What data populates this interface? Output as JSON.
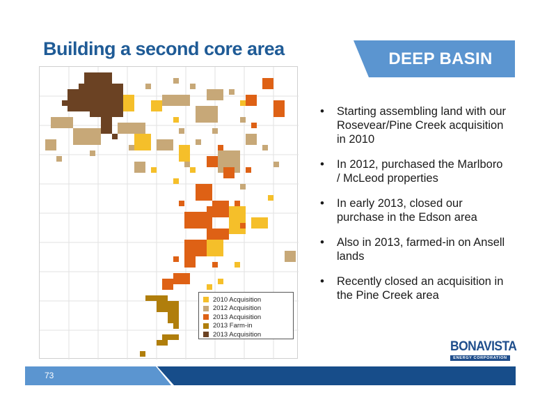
{
  "slide": {
    "title": "Building a second core area",
    "banner": "DEEP BASIN",
    "page_number": "73"
  },
  "colors": {
    "title": "#1f5b96",
    "banner": "#5b95d0",
    "footer_dark": "#174d8a",
    "acq_2010": "#f5bf2a",
    "acq_2012": "#c7a878",
    "acq_2013": "#de6115",
    "farm_in_2013": "#b07e0c",
    "acq_2013_dark": "#6b4223"
  },
  "legend": [
    {
      "label": "2010 Acquisition",
      "color": "#f5bf2a"
    },
    {
      "label": "2012 Acquisition",
      "color": "#c7a878"
    },
    {
      "label": "2013 Acquisition",
      "color": "#de6115"
    },
    {
      "label": "2013 Farm-in",
      "color": "#b07e0c"
    },
    {
      "label": "2013 Acquisition",
      "color": "#6b4223"
    }
  ],
  "bullets": [
    "Starting assembling land with our Rosevear/Pine Creek acquisition in 2010",
    "In 2012, purchased the Marlboro / McLeod properties",
    "In early 2013, closed our purchase in the Edson area",
    "Also in 2013, farmed-in on Ansell lands",
    "Recently closed an acquisition in the Pine Creek area"
  ],
  "logo": {
    "name": "BONAVISTA",
    "tagline": "ENERGY CORPORATION"
  }
}
